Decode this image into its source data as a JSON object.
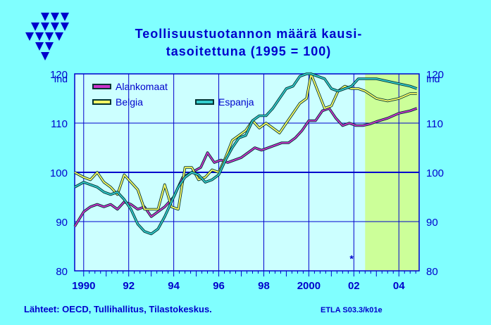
{
  "colors": {
    "background": "#80ffff",
    "plot_bg": "#ccffff",
    "forecast_bg": "#ccff99",
    "axis": "#0000cc",
    "alankomaat": "#cc33cc",
    "belgia": "#ffff66",
    "espanja": "#33cccc"
  },
  "header": {
    "logo_icon": "etla-triangles-logo",
    "title_line1": "Teollisuustuotannon  määrä  kausi-",
    "title_line2": "tasoitettuna  (1995 = 100)"
  },
  "footer": {
    "sources": "Lähteet:   OECD, Tullihallitus, Tilastokeskus.",
    "code": "ETLA S03.3/k01e"
  },
  "chart_data": {
    "type": "line",
    "ylabel_left": "Ind",
    "ylabel_right": "Ind",
    "ylim": [
      80,
      120
    ],
    "yticks": [
      80,
      90,
      100,
      110,
      120
    ],
    "xlim": [
      1989.6,
      2004.9
    ],
    "xtick_labels": [
      "1990",
      "92",
      "94",
      "96",
      "98",
      "2000",
      "02",
      "04"
    ],
    "xtick_values": [
      1990,
      1992,
      1994,
      1996,
      1998,
      2000,
      2002,
      2004
    ],
    "forecast_start": 2002.5,
    "reference_line": 100,
    "marker_symbol": "*",
    "marker_point": [
      2001.9,
      82.5
    ],
    "legend": [
      "Alankomaat",
      "Belgia",
      "Espanja"
    ],
    "series": [
      {
        "name": "Alankomaat",
        "x": [
          1989.6,
          1990.0,
          1990.3,
          1990.6,
          1990.9,
          1991.2,
          1991.5,
          1991.8,
          1992.1,
          1992.4,
          1992.7,
          1993.0,
          1993.3,
          1993.6,
          1994.0,
          1994.4,
          1994.8,
          1995.2,
          1995.5,
          1995.8,
          1996.1,
          1996.4,
          1996.7,
          1997.0,
          1997.3,
          1997.6,
          1997.9,
          1998.2,
          1998.5,
          1998.8,
          1999.1,
          1999.4,
          1999.7,
          2000.0,
          2000.3,
          2000.6,
          2000.9,
          2001.2,
          2001.5,
          2001.8,
          2002.1,
          2002.4,
          2002.7,
          2003.0,
          2003.5,
          2004.0,
          2004.5,
          2004.8
        ],
        "y": [
          89,
          92,
          93,
          93.5,
          93,
          93.5,
          92.5,
          94,
          93.5,
          92.5,
          93,
          91,
          92,
          93,
          95,
          99,
          100,
          101,
          104,
          102,
          102.5,
          102,
          102.5,
          103,
          104,
          105,
          104.5,
          105,
          105.5,
          106,
          106,
          107,
          108.5,
          110.5,
          110.5,
          112.5,
          113,
          111,
          109.5,
          110,
          109.5,
          109.5,
          109.8,
          110.3,
          111,
          112,
          112.5,
          113
        ]
      },
      {
        "name": "Belgia",
        "x": [
          1989.6,
          1990.0,
          1990.3,
          1990.6,
          1990.9,
          1991.2,
          1991.5,
          1991.8,
          1992.1,
          1992.4,
          1992.7,
          1993.0,
          1993.3,
          1993.6,
          1993.9,
          1994.2,
          1994.5,
          1994.8,
          1995.1,
          1995.4,
          1995.7,
          1996.0,
          1996.3,
          1996.6,
          1996.9,
          1997.2,
          1997.5,
          1997.8,
          1998.1,
          1998.4,
          1998.7,
          1999.0,
          1999.3,
          1999.6,
          1999.9,
          2000.1,
          2000.4,
          2000.7,
          2001.0,
          2001.3,
          2001.6,
          2001.9,
          2002.2,
          2002.5,
          2003.0,
          2003.5,
          2004.0,
          2004.5,
          2004.8
        ],
        "y": [
          100,
          99,
          98.5,
          100,
          98,
          97,
          95.5,
          99.5,
          98,
          96.5,
          92.5,
          92.5,
          92.5,
          97.5,
          93,
          92.5,
          101,
          101,
          98.5,
          99,
          100.5,
          100,
          103,
          106.5,
          107.5,
          108.5,
          110.5,
          109,
          110,
          109,
          108,
          110,
          112,
          114,
          115,
          120,
          116.5,
          113,
          113.5,
          116.5,
          117.5,
          117,
          117,
          116.5,
          115,
          114.5,
          115,
          116,
          116
        ]
      },
      {
        "name": "Espanja",
        "x": [
          1989.6,
          1990.0,
          1990.3,
          1990.6,
          1990.9,
          1991.2,
          1991.5,
          1991.8,
          1992.1,
          1992.4,
          1992.7,
          1993.0,
          1993.3,
          1993.6,
          1993.9,
          1994.2,
          1994.5,
          1994.8,
          1995.1,
          1995.4,
          1995.7,
          1996.0,
          1996.3,
          1996.6,
          1996.9,
          1997.2,
          1997.5,
          1997.8,
          1998.1,
          1998.4,
          1998.7,
          1999.0,
          1999.3,
          1999.6,
          1999.9,
          2000.1,
          2000.4,
          2000.7,
          2001.0,
          2001.3,
          2001.6,
          2001.9,
          2002.2,
          2002.5,
          2003.0,
          2003.5,
          2004.0,
          2004.5,
          2004.8
        ],
        "y": [
          97,
          98,
          97.5,
          97,
          96,
          95.5,
          96,
          94.5,
          92.5,
          89.5,
          88,
          87.5,
          88.5,
          91,
          94,
          97,
          99,
          100,
          99.5,
          98,
          98.5,
          99.5,
          102.5,
          105,
          107,
          107.5,
          110.5,
          111.5,
          111.5,
          113,
          115,
          117,
          117.5,
          119.5,
          120,
          120,
          119.5,
          119,
          117,
          116.5,
          117,
          117.5,
          119,
          119,
          119,
          118.5,
          118,
          117.5,
          117
        ]
      }
    ]
  }
}
